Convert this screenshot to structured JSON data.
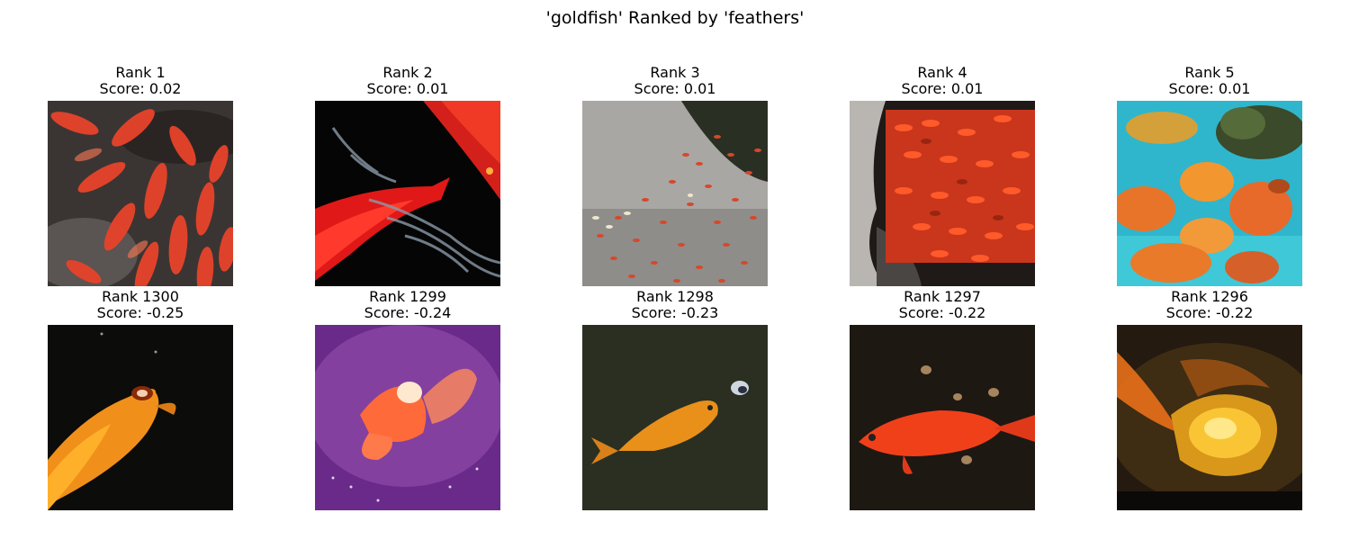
{
  "figure": {
    "title": "'goldfish' Ranked by 'feathers'"
  },
  "top_row": [
    {
      "rank": "Rank 1",
      "score": "Score: 0.02",
      "image": "many orange koi in dark pond water"
    },
    {
      "rank": "Rank 2",
      "score": "Score: 0.01",
      "image": "red koi on black background with water ripples"
    },
    {
      "rank": "Rank 3",
      "score": "Score: 0.01",
      "image": "school of small orange fish in grey pond"
    },
    {
      "rank": "Rank 4",
      "score": "Score: 0.01",
      "image": "dense swarm of red goldfish beside rocks"
    },
    {
      "rank": "Rank 5",
      "score": "Score: 0.01",
      "image": "fancy goldfish in blue aquarium"
    }
  ],
  "bottom_row": [
    {
      "rank": "Rank 1300",
      "score": "Score: -0.25",
      "image": "orange koi at surface in black water"
    },
    {
      "rank": "Rank 1299",
      "score": "Score: -0.24",
      "image": "goldfish on purple glowing background"
    },
    {
      "rank": "Rank 1298",
      "score": "Score: -0.23",
      "image": "single goldfish with insect on dark green water"
    },
    {
      "rank": "Rank 1297",
      "score": "Score: -0.22",
      "image": "red goldfish over pebbles on dark ground"
    },
    {
      "rank": "Rank 1296",
      "score": "Score: -0.22",
      "image": "blurry golden fancy goldfish close-up"
    }
  ]
}
